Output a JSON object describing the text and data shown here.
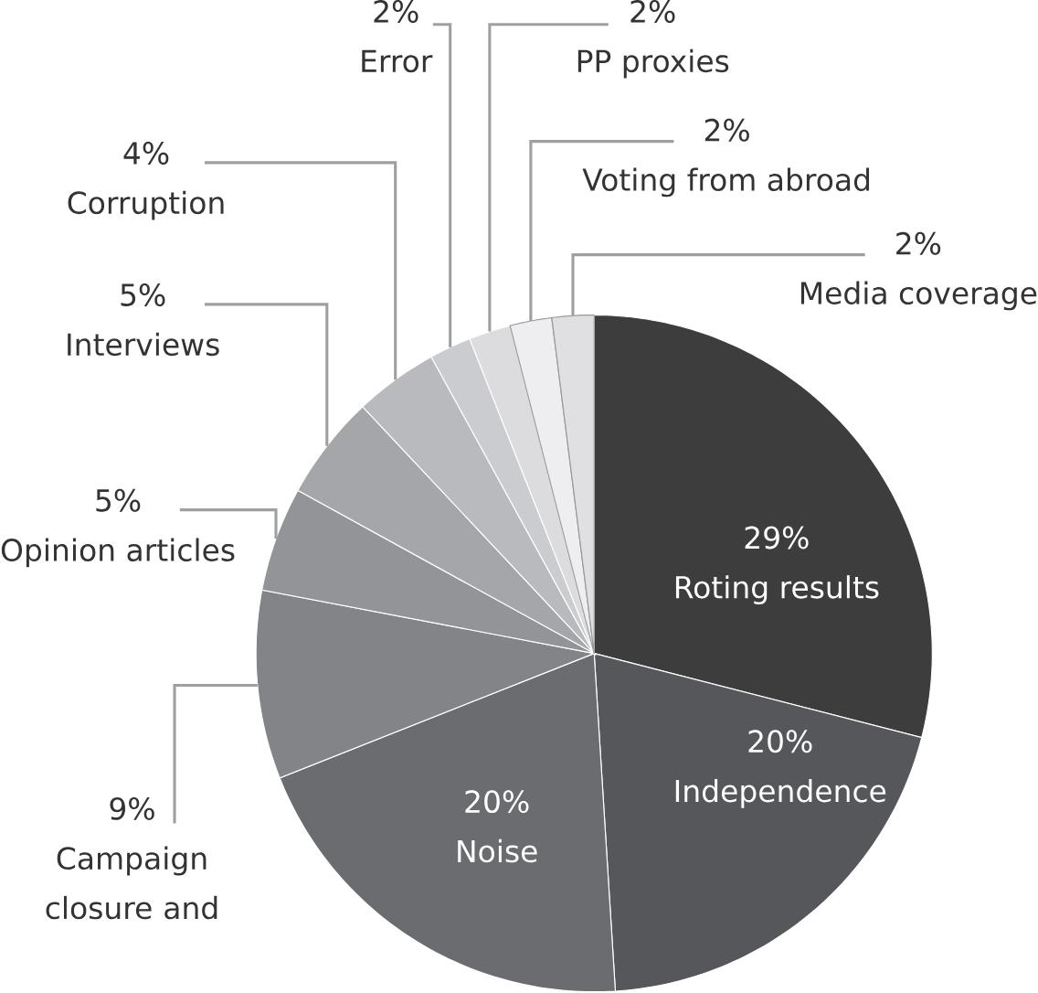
{
  "chart_data": {
    "type": "pie",
    "categories": [
      "Roting results",
      "Independence",
      "Noise",
      "Campaign closure and",
      "Opinion articles",
      "Interviews",
      "Corruption",
      "Error",
      "PP proxies",
      "Voting from abroad",
      "Media coverage"
    ],
    "values": [
      29,
      20,
      20,
      9,
      5,
      5,
      4,
      2,
      2,
      2,
      2
    ],
    "value_labels": [
      "29%",
      "20%",
      "20%",
      "9%",
      "5%",
      "5%",
      "4%",
      "2%",
      "2%",
      "2%",
      "2%"
    ],
    "colors": [
      "#3d3d3d",
      "#56575b",
      "#6b6c70",
      "#838488",
      "#939498",
      "#a5a6a9",
      "#b9babd",
      "#cbcccf",
      "#dcdcde",
      "#eeeef0",
      "#e0e0e2"
    ]
  }
}
